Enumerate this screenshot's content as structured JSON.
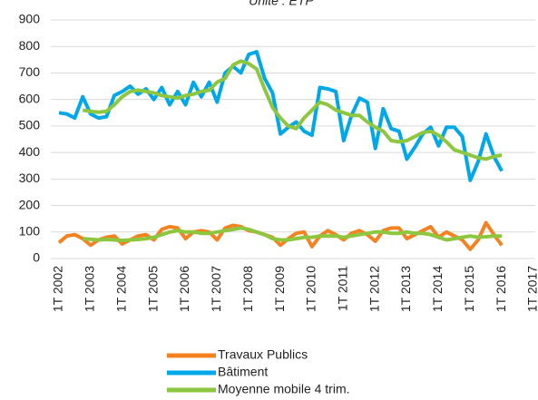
{
  "chart_data": {
    "type": "line",
    "subtitle": "Unité : ETP",
    "categories": [
      "1T 2002",
      null,
      null,
      null,
      "1T 2003",
      null,
      null,
      null,
      "1T 2004",
      null,
      null,
      null,
      "1T 2005",
      null,
      null,
      null,
      "1T 2006",
      null,
      null,
      null,
      "1T 2007",
      null,
      null,
      null,
      "1T 2008",
      null,
      null,
      null,
      "1T 2009",
      null,
      null,
      null,
      "1T 2010",
      null,
      null,
      null,
      "1T 2011",
      null,
      null,
      null,
      "1T 2012",
      null,
      null,
      null,
      "1T 2013",
      null,
      null,
      null,
      "1T 2014",
      null,
      null,
      null,
      "1T 2015",
      null,
      null,
      null,
      "1T 2016",
      null,
      null,
      null,
      "1T 2017"
    ],
    "series": [
      {
        "name": "Travaux Publics",
        "color": "#f58220",
        "values": [
          60,
          85,
          90,
          75,
          50,
          70,
          80,
          85,
          55,
          70,
          85,
          90,
          70,
          110,
          120,
          115,
          75,
          100,
          105,
          100,
          70,
          115,
          125,
          120,
          105,
          100,
          90,
          80,
          50,
          75,
          95,
          100,
          45,
          85,
          105,
          90,
          70,
          95,
          105,
          90,
          65,
          105,
          115,
          115,
          75,
          90,
          105,
          120,
          80,
          100,
          85,
          70,
          35,
          70,
          135,
          90,
          50,
          null,
          null,
          null,
          null
        ]
      },
      {
        "name": "Bâtiment",
        "color": "#00a8e8",
        "values": [
          550,
          545,
          530,
          610,
          545,
          530,
          535,
          615,
          630,
          650,
          620,
          640,
          600,
          645,
          580,
          630,
          580,
          665,
          610,
          665,
          590,
          700,
          725,
          700,
          770,
          780,
          680,
          625,
          470,
          495,
          515,
          480,
          465,
          645,
          640,
          630,
          445,
          540,
          605,
          590,
          415,
          565,
          490,
          480,
          375,
          420,
          470,
          495,
          425,
          495,
          495,
          460,
          295,
          365,
          470,
          385,
          330,
          null,
          null,
          null,
          null
        ]
      },
      {
        "name": "Moyenne mobile 4 trim.",
        "color": "#8dc63f",
        "values": [
          null,
          null,
          null,
          560,
          555,
          552,
          555,
          580,
          610,
          630,
          635,
          630,
          625,
          615,
          610,
          605,
          615,
          620,
          630,
          635,
          665,
          680,
          730,
          745,
          735,
          715,
          640,
          570,
          530,
          500,
          490,
          530,
          560,
          590,
          580,
          560,
          550,
          540,
          540,
          515,
          495,
          480,
          445,
          440,
          445,
          460,
          475,
          480,
          465,
          440,
          410,
          400,
          390,
          380,
          375,
          385,
          390,
          null,
          null,
          null,
          null
        ]
      },
      {
        "color": "#8dc63f",
        "values": [
          null,
          null,
          null,
          75,
          73,
          70,
          72,
          70,
          68,
          70,
          72,
          75,
          80,
          90,
          100,
          105,
          100,
          100,
          95,
          95,
          100,
          105,
          110,
          115,
          110,
          100,
          90,
          75,
          70,
          70,
          75,
          80,
          80,
          85,
          85,
          85,
          80,
          85,
          90,
          95,
          100,
          100,
          95,
          95,
          100,
          95,
          95,
          90,
          80,
          70,
          75,
          80,
          85,
          80,
          82,
          85,
          85,
          null,
          null,
          null,
          null
        ]
      }
    ],
    "ylim": [
      0,
      900
    ],
    "yticks": [
      0,
      100,
      200,
      300,
      400,
      500,
      600,
      700,
      800,
      900
    ],
    "grid": true
  }
}
